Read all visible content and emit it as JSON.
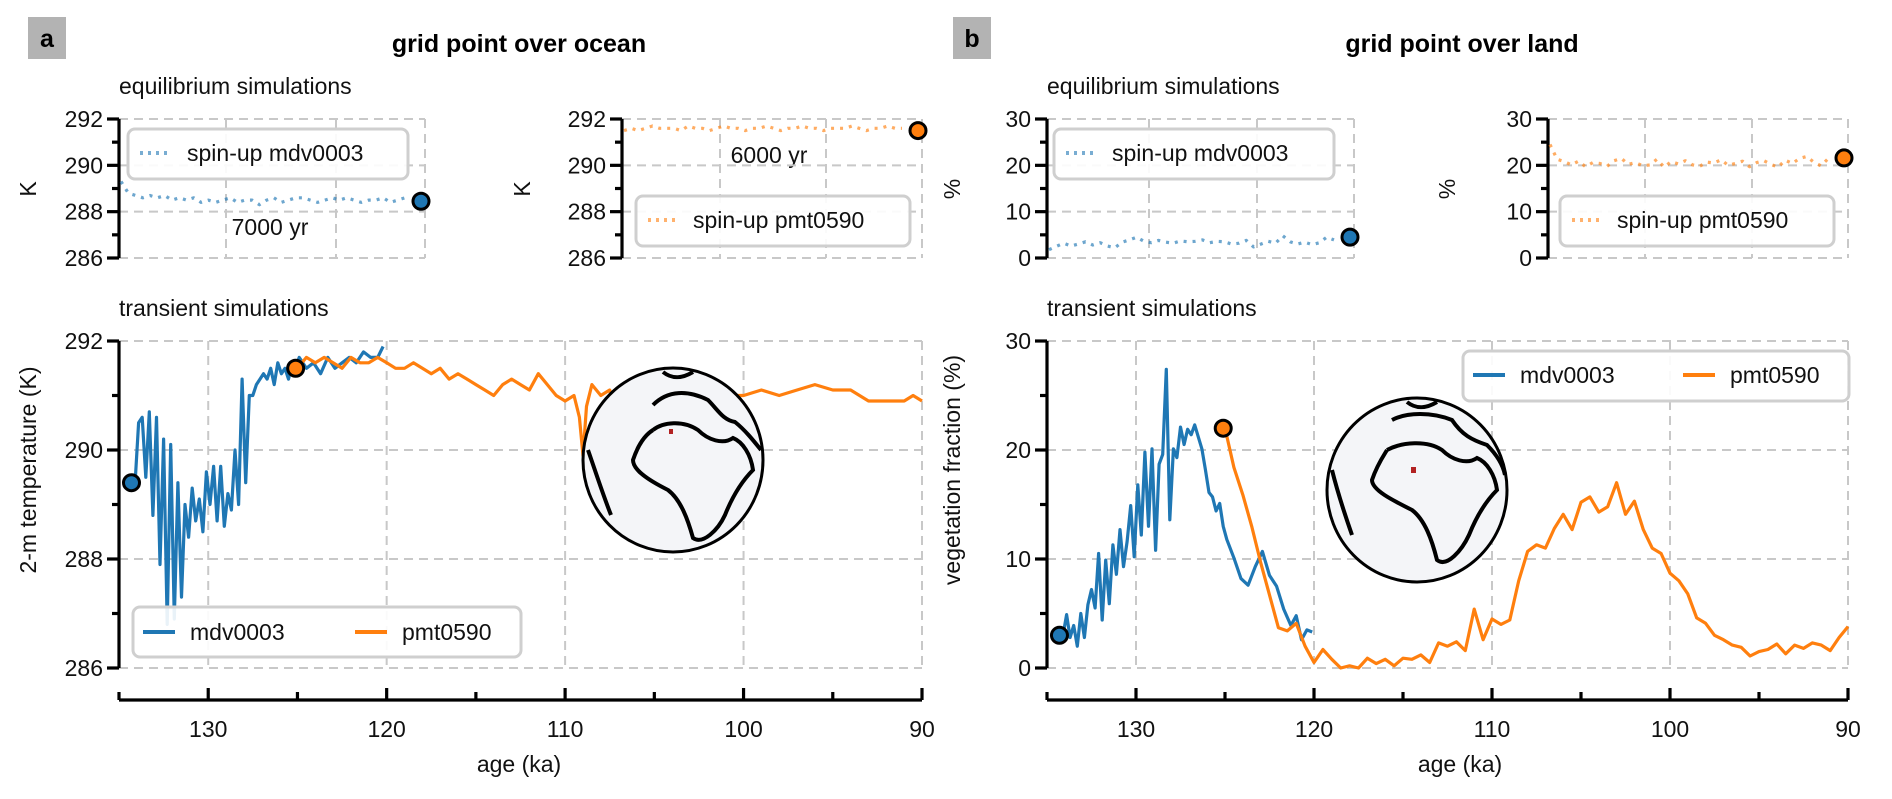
{
  "colors": {
    "mdv0003": "#1f77b4",
    "pmt0590": "#ff7f0e",
    "grid": "#c8c8c8",
    "panel_badge": "#b3b3b3",
    "marker_land": "#b22222"
  },
  "panels": [
    {
      "badge": "a",
      "title": "grid point over ocean",
      "eq_label": "equilibrium simulations",
      "tr_label": "transient simulations"
    },
    {
      "badge": "b",
      "title": "grid point over land",
      "eq_label": "equilibrium simulations",
      "tr_label": "transient simulations"
    }
  ],
  "chart_data": [
    {
      "id": "a-eq-mdv",
      "type": "line",
      "style": "dotted",
      "ylabel": "K",
      "ylim": [
        286,
        292
      ],
      "yticks": [
        286,
        288,
        290,
        292
      ],
      "legend": [
        {
          "name": "spin-up mdv0003",
          "color": "#1f77b4"
        }
      ],
      "legend_position": "top",
      "annotation": "7000 yr",
      "series": [
        {
          "name": "spin-up mdv0003",
          "color": "#1f77b4",
          "values": [
            289.3,
            288.8,
            288.7,
            288.6,
            288.7,
            288.6,
            288.7,
            288.5,
            288.6,
            288.5,
            288.6,
            288.4,
            288.5,
            288.4,
            288.5,
            288.6,
            288.4,
            288.5,
            288.5,
            288.3,
            288.5,
            288.6,
            288.4,
            288.5,
            288.6,
            288.6,
            288.5,
            288.4,
            288.5,
            288.6,
            288.5,
            288.6,
            288.5,
            288.4,
            288.5,
            288.5,
            288.6,
            288.4,
            288.5,
            288.6
          ]
        }
      ],
      "end_marker": 288.45
    },
    {
      "id": "a-eq-pmt",
      "type": "line",
      "style": "dotted",
      "ylabel": "K",
      "ylim": [
        286,
        292
      ],
      "yticks": [
        286,
        288,
        290,
        292
      ],
      "legend": [
        {
          "name": "spin-up pmt0590",
          "color": "#ff7f0e"
        }
      ],
      "legend_position": "bottom-right",
      "annotation": "6000 yr",
      "series": [
        {
          "name": "spin-up pmt0590",
          "color": "#ff7f0e",
          "values": [
            291.5,
            291.6,
            291.5,
            291.6,
            291.7,
            291.6,
            291.6,
            291.6,
            291.5,
            291.7,
            291.6,
            291.6,
            291.5,
            291.6,
            291.7,
            291.6,
            291.6,
            291.5,
            291.6,
            291.6,
            291.7,
            291.6,
            291.5,
            291.6,
            291.6,
            291.7,
            291.6,
            291.6,
            291.5,
            291.6,
            291.6,
            291.6,
            291.7,
            291.6,
            291.5,
            291.6,
            291.6,
            291.7,
            291.6,
            291.6
          ]
        }
      ],
      "end_marker": 291.5
    },
    {
      "id": "a-transient",
      "type": "line",
      "xlabel": "age (ka)",
      "ylabel": "2-m temperature (K)",
      "xlim": [
        135,
        90
      ],
      "xticks": [
        130,
        120,
        110,
        100,
        90
      ],
      "ylim": [
        286,
        292
      ],
      "yticks": [
        286,
        288,
        290,
        292
      ],
      "legend": [
        {
          "name": "mdv0003",
          "color": "#1f77b4"
        },
        {
          "name": "pmt0590",
          "color": "#ff7f0e"
        }
      ],
      "legend_position": "bottom-left",
      "inset": "globe with ocean grid point marker",
      "series": [
        {
          "name": "mdv0003",
          "color": "#1f77b4",
          "x": [
            134.1,
            133.9,
            133.7,
            133.5,
            133.3,
            133.1,
            132.9,
            132.7,
            132.5,
            132.3,
            132.1,
            131.9,
            131.7,
            131.5,
            131.3,
            131.1,
            130.9,
            130.7,
            130.5,
            130.3,
            130.1,
            129.9,
            129.7,
            129.5,
            129.3,
            129.1,
            128.9,
            128.7,
            128.5,
            128.3,
            128.1,
            127.9,
            127.7,
            127.5,
            127.3,
            127.1,
            126.9,
            126.7,
            126.5,
            126.3,
            126.1,
            125.9,
            125.7,
            125.5,
            125.3,
            125.1,
            124.9,
            124.5,
            124.1,
            123.7,
            123.3,
            122.9,
            122.5,
            122.1,
            121.7,
            121.3,
            120.9,
            120.5,
            120.2
          ],
          "y": [
            289.4,
            290.5,
            290.6,
            289.5,
            290.7,
            288.8,
            290.6,
            287.9,
            290.2,
            286.8,
            290.1,
            286.9,
            289.4,
            287.3,
            289.0,
            288.4,
            289.3,
            288.7,
            289.1,
            288.5,
            289.6,
            289.0,
            289.7,
            288.7,
            289.7,
            288.6,
            289.2,
            288.9,
            290.0,
            289.0,
            291.3,
            289.4,
            291.0,
            291.0,
            291.2,
            291.3,
            291.4,
            291.3,
            291.5,
            291.2,
            291.6,
            291.4,
            291.5,
            291.3,
            291.6,
            291.5,
            291.7,
            291.5,
            291.6,
            291.4,
            291.7,
            291.5,
            291.6,
            291.7,
            291.6,
            291.8,
            291.7,
            291.7,
            291.9
          ]
        },
        {
          "name": "pmt0590",
          "color": "#ff7f0e",
          "x": [
            125.0,
            124.5,
            124.0,
            123.5,
            123.0,
            122.5,
            122.0,
            121.5,
            121.0,
            120.5,
            120.0,
            119.5,
            119.0,
            118.5,
            118.0,
            117.5,
            117.0,
            116.5,
            116.0,
            115.5,
            115.0,
            114.5,
            114.0,
            113.5,
            113.0,
            112.5,
            112.0,
            111.5,
            111.0,
            110.5,
            110.0,
            109.5,
            109.2,
            109.0,
            108.8,
            108.5,
            108.0,
            107.5,
            107.0,
            106.8,
            106.5,
            106.2,
            106.0,
            105.8,
            105.5,
            105.0,
            104.5,
            104.0,
            103.7,
            103.5,
            103.0,
            102.5,
            102.0,
            101.5,
            101.0,
            100.5,
            100.0,
            99.0,
            98.0,
            97.0,
            96.0,
            95.0,
            94.0,
            93.0,
            92.0,
            91.0,
            90.5,
            90.0
          ],
          "y": [
            291.5,
            291.7,
            291.6,
            291.7,
            291.6,
            291.5,
            291.7,
            291.6,
            291.6,
            291.7,
            291.6,
            291.5,
            291.5,
            291.6,
            291.5,
            291.4,
            291.5,
            291.3,
            291.4,
            291.3,
            291.2,
            291.1,
            291.0,
            291.2,
            291.3,
            291.2,
            291.1,
            291.4,
            291.2,
            291.0,
            290.9,
            291.0,
            290.6,
            289.9,
            290.8,
            291.2,
            291.0,
            291.1,
            290.3,
            290.8,
            290.6,
            289.4,
            290.4,
            290.9,
            291.2,
            291.3,
            291.2,
            290.8,
            290.6,
            290.7,
            290.8,
            290.7,
            290.8,
            290.9,
            290.9,
            291.0,
            291.0,
            291.1,
            291.0,
            291.1,
            291.2,
            291.1,
            291.1,
            290.9,
            290.9,
            290.9,
            291.0,
            290.9
          ]
        }
      ],
      "markers": [
        {
          "x": 134.3,
          "y": 289.4,
          "color": "#1f77b4"
        },
        {
          "x": 125.1,
          "y": 291.5,
          "color": "#ff7f0e"
        }
      ]
    },
    {
      "id": "b-eq-mdv",
      "type": "line",
      "style": "dotted",
      "ylabel": "%",
      "ylim": [
        0,
        30
      ],
      "yticks": [
        0,
        10,
        20,
        30
      ],
      "legend": [
        {
          "name": "spin-up mdv0003",
          "color": "#1f77b4"
        }
      ],
      "legend_position": "top",
      "series": [
        {
          "name": "spin-up mdv0003",
          "color": "#1f77b4",
          "values": [
            1.8,
            2.5,
            3.2,
            2.6,
            3.0,
            3.5,
            2.8,
            3.3,
            2.6,
            2.2,
            3.4,
            3.9,
            4.5,
            3.6,
            3.3,
            3.8,
            3.4,
            3.2,
            3.7,
            3.5,
            3.6,
            3.9,
            3.3,
            3.6,
            3.5,
            3.0,
            3.2,
            3.8,
            2.4,
            3.0,
            3.6,
            3.2,
            4.8,
            3.5,
            3.0,
            3.4,
            2.9,
            3.3,
            4.5,
            3.9
          ]
        }
      ],
      "end_marker": 4.5
    },
    {
      "id": "b-eq-pmt",
      "type": "line",
      "style": "dotted",
      "ylabel": "%",
      "ylim": [
        0,
        30
      ],
      "yticks": [
        0,
        10,
        20,
        30
      ],
      "legend": [
        {
          "name": "spin-up pmt0590",
          "color": "#ff7f0e"
        }
      ],
      "legend_position": "bottom-right",
      "series": [
        {
          "name": "spin-up pmt0590",
          "color": "#ff7f0e",
          "values": [
            24.5,
            21.3,
            20.8,
            20.1,
            20.9,
            19.7,
            20.6,
            20.4,
            19.8,
            21.0,
            21.5,
            20.2,
            20.6,
            19.9,
            20.1,
            21.3,
            19.6,
            20.8,
            20.3,
            21.0,
            20.1,
            19.8,
            20.7,
            20.5,
            21.2,
            20.0,
            20.4,
            20.9,
            19.7,
            20.6,
            21.0,
            20.2,
            19.6,
            21.1,
            20.4,
            21.5,
            21.9,
            20.7,
            19.9,
            21.4
          ]
        }
      ],
      "end_marker": 21.6
    },
    {
      "id": "b-transient",
      "type": "line",
      "xlabel": "age (ka)",
      "ylabel": "vegetation fraction (%)",
      "xlim": [
        135,
        90
      ],
      "xticks": [
        130,
        120,
        110,
        100,
        90
      ],
      "ylim": [
        0,
        30
      ],
      "yticks": [
        0,
        10,
        20,
        30
      ],
      "legend": [
        {
          "name": "mdv0003",
          "color": "#1f77b4"
        },
        {
          "name": "pmt0590",
          "color": "#ff7f0e"
        }
      ],
      "legend_position": "top-right",
      "inset": "globe with land grid point marker",
      "series": [
        {
          "name": "mdv0003",
          "color": "#1f77b4",
          "x": [
            134.1,
            133.9,
            133.7,
            133.5,
            133.3,
            133.1,
            132.9,
            132.7,
            132.5,
            132.3,
            132.1,
            131.9,
            131.7,
            131.5,
            131.3,
            131.1,
            130.9,
            130.7,
            130.5,
            130.3,
            130.1,
            129.9,
            129.7,
            129.5,
            129.3,
            129.1,
            128.9,
            128.7,
            128.5,
            128.3,
            128.1,
            127.9,
            127.7,
            127.5,
            127.3,
            127.1,
            126.9,
            126.7,
            126.5,
            126.3,
            126.1,
            125.9,
            125.7,
            125.5,
            125.3,
            125.1,
            124.9,
            124.5,
            124.1,
            123.7,
            123.3,
            122.9,
            122.5,
            122.1,
            121.7,
            121.3,
            121.0,
            120.7,
            120.4,
            120.1
          ],
          "y": [
            3.0,
            4.9,
            2.8,
            3.9,
            2.0,
            5.0,
            2.8,
            5.8,
            7.2,
            5.5,
            10.5,
            4.4,
            9.9,
            5.9,
            11.3,
            8.6,
            12.7,
            9.3,
            11.6,
            14.9,
            10.2,
            16.8,
            12.2,
            19.8,
            13.0,
            20.1,
            10.8,
            18.7,
            19.6,
            27.4,
            13.6,
            20.1,
            19.3,
            22.1,
            20.5,
            21.9,
            21.4,
            22.3,
            21.2,
            20.1,
            18.2,
            16.1,
            15.7,
            14.4,
            15.1,
            13.0,
            11.8,
            10.1,
            8.2,
            7.6,
            9.3,
            10.7,
            8.5,
            7.5,
            5.4,
            3.9,
            4.8,
            2.6,
            3.5,
            3.3
          ]
        },
        {
          "name": "pmt0590",
          "color": "#ff7f0e",
          "x": [
            125.0,
            124.5,
            124.0,
            123.5,
            123.0,
            122.5,
            122.0,
            121.5,
            121.0,
            120.5,
            120.0,
            119.5,
            119.0,
            118.5,
            118.0,
            117.5,
            117.0,
            116.5,
            116.0,
            115.5,
            115.0,
            114.5,
            114.0,
            113.5,
            113.0,
            112.5,
            112.0,
            111.5,
            111.0,
            110.5,
            110.0,
            109.5,
            109.0,
            108.5,
            108.0,
            107.5,
            107.0,
            106.5,
            106.0,
            105.5,
            105.0,
            104.5,
            104.0,
            103.5,
            103.0,
            102.5,
            102.0,
            101.5,
            101.0,
            100.5,
            100.0,
            99.5,
            99.0,
            98.5,
            98.0,
            97.5,
            97.0,
            96.5,
            96.0,
            95.5,
            95.0,
            94.5,
            94.0,
            93.5,
            93.0,
            92.5,
            92.0,
            91.5,
            91.0,
            90.5,
            90.0
          ],
          "y": [
            22.0,
            18.4,
            15.9,
            13.0,
            9.7,
            6.7,
            3.7,
            3.4,
            4.1,
            2.0,
            0.5,
            1.7,
            0.8,
            0.0,
            0.2,
            0.0,
            0.9,
            0.4,
            0.8,
            0.2,
            0.9,
            0.8,
            1.2,
            0.5,
            2.3,
            2.0,
            2.4,
            1.6,
            5.4,
            2.6,
            4.5,
            4.0,
            4.4,
            8.0,
            10.7,
            11.3,
            11.0,
            12.8,
            14.1,
            12.7,
            15.2,
            15.7,
            14.3,
            14.8,
            17.0,
            14.1,
            15.3,
            12.7,
            11.0,
            10.5,
            8.7,
            8.0,
            6.8,
            4.6,
            4.1,
            3.0,
            2.6,
            2.1,
            1.9,
            1.1,
            1.5,
            1.7,
            2.2,
            1.3,
            2.1,
            1.8,
            2.3,
            2.1,
            1.6,
            2.8,
            3.8
          ]
        }
      ],
      "markers": [
        {
          "x": 134.3,
          "y": 3.0,
          "color": "#1f77b4"
        },
        {
          "x": 125.1,
          "y": 22.0,
          "color": "#ff7f0e"
        }
      ]
    }
  ]
}
